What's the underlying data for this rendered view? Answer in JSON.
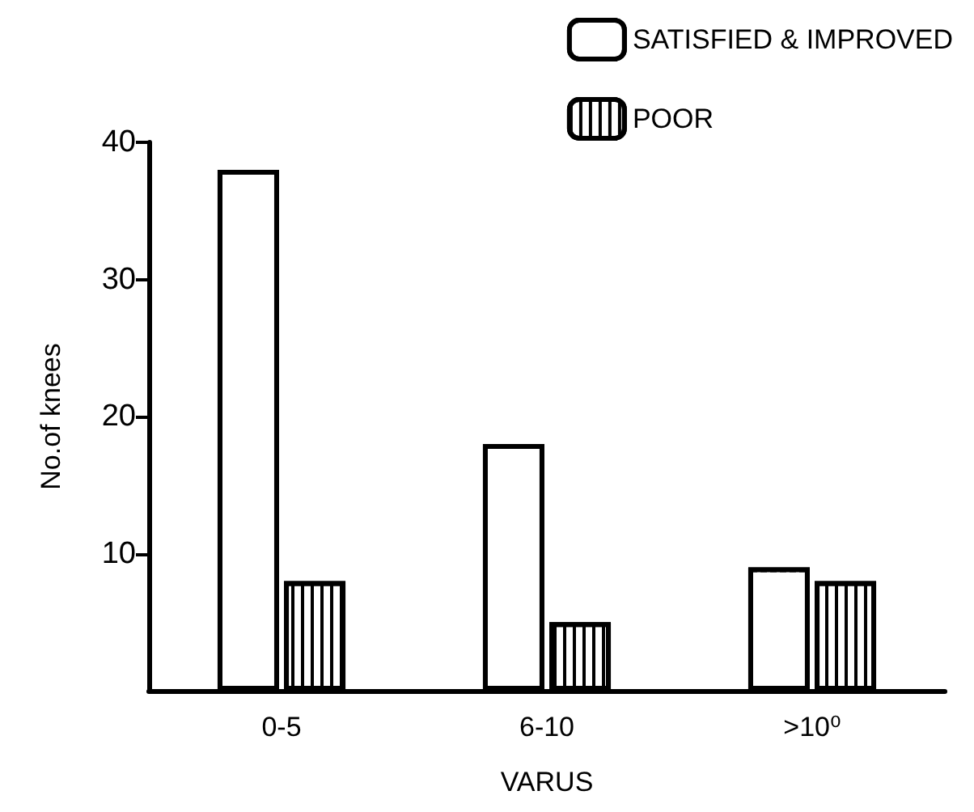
{
  "chart_data": {
    "type": "bar",
    "xlabel": "VARUS",
    "ylabel": "No.of knees",
    "categories": [
      "0-5",
      "6-10",
      ">10⁰"
    ],
    "series": [
      {
        "name": "SATISFIED & IMPROVED",
        "color": "#ffffff",
        "values": [
          38,
          18,
          9
        ]
      },
      {
        "name": "POOR",
        "color": "#000000",
        "values": [
          8,
          5,
          8
        ]
      }
    ],
    "ylim": [
      0,
      40
    ],
    "yticks": [
      10,
      20,
      30,
      40
    ],
    "grid": false,
    "legend": "top right"
  }
}
